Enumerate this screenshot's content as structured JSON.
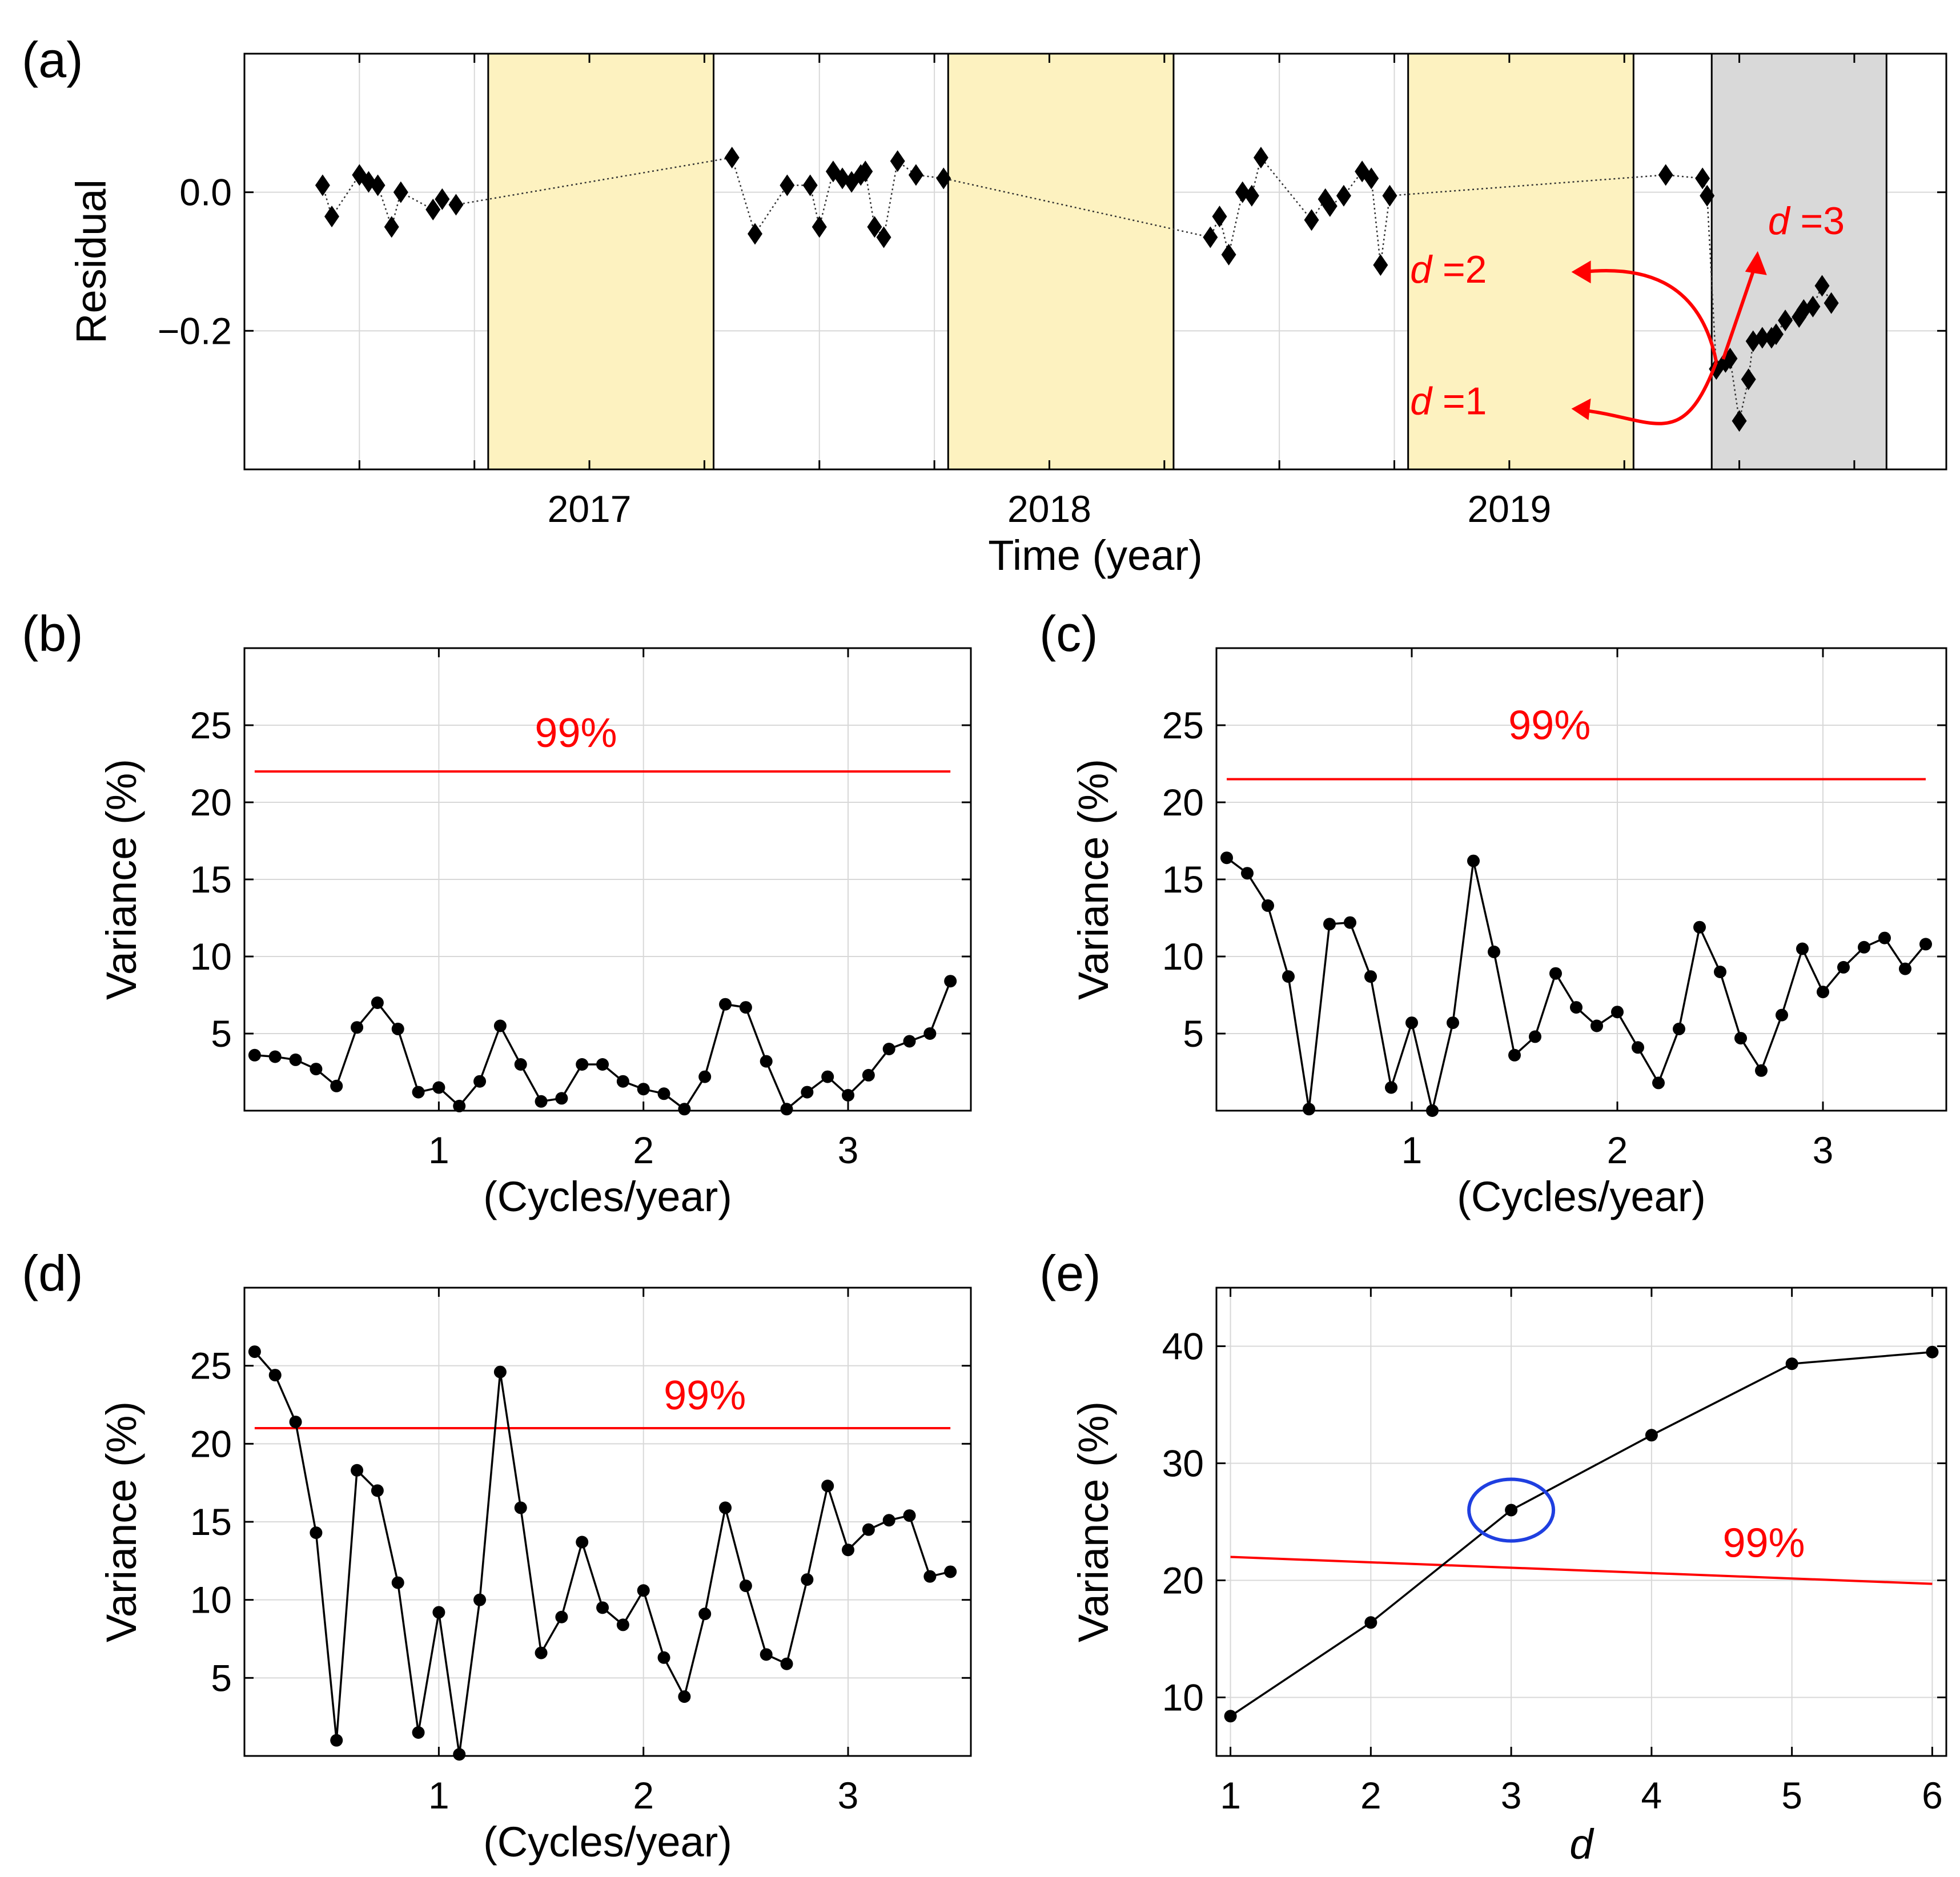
{
  "chart_data": [
    {
      "id": "a",
      "type": "scatter",
      "panel_label": "(a)",
      "xlabel": "Time (year)",
      "ylabel": "Residual",
      "xlim": [
        2016.25,
        2019.95
      ],
      "ylim": [
        -0.4,
        0.2
      ],
      "xticks": [
        2016.5,
        2016.75,
        2017,
        2017.25,
        2017.5,
        2017.75,
        2018,
        2018.25,
        2018.5,
        2018.75,
        2019,
        2019.25,
        2019.5,
        2019.75
      ],
      "xtick_labels": [
        {
          "x": 2017,
          "label": "2017"
        },
        {
          "x": 2018,
          "label": "2018"
        },
        {
          "x": 2019,
          "label": "2019"
        }
      ],
      "yticks": [
        0.0,
        -0.2
      ],
      "ytick_labels": [
        "0.0",
        "−0.2"
      ],
      "grid": true,
      "shaded_regions": [
        {
          "x0": 2016.78,
          "x1": 2017.27,
          "color": "#fdf2c0"
        },
        {
          "x0": 2017.78,
          "x1": 2018.27,
          "color": "#fdf2c0"
        },
        {
          "x0": 2018.78,
          "x1": 2019.27,
          "color": "#fdf2c0"
        },
        {
          "x0": 2019.44,
          "x1": 2019.82,
          "color": "#d9d9d9"
        }
      ],
      "series": [
        {
          "name": "residual",
          "marker": "diamond",
          "color": "#000000",
          "x": [
            2016.42,
            2016.44,
            2016.5,
            2016.52,
            2016.54,
            2016.57,
            2016.59,
            2016.66,
            2016.68,
            2016.71,
            2017.31,
            2017.36,
            2017.43,
            2017.48,
            2017.5,
            2017.53,
            2017.55,
            2017.57,
            2017.59,
            2017.6,
            2017.62,
            2017.64,
            2017.67,
            2017.71,
            2017.77,
            2018.35,
            2018.37,
            2018.39,
            2018.42,
            2018.44,
            2018.46,
            2018.57,
            2018.6,
            2018.61,
            2018.64,
            2018.68,
            2018.7,
            2018.72,
            2018.74,
            2019.34,
            2019.42,
            2019.43,
            2019.45,
            2019.47,
            2019.48,
            2019.5,
            2019.52,
            2019.53,
            2019.55,
            2019.57,
            2019.58,
            2019.6,
            2019.63,
            2019.64,
            2019.66,
            2019.68,
            2019.7
          ],
          "y": [
            0.01,
            -0.035,
            0.025,
            0.015,
            0.01,
            -0.05,
            0.0,
            -0.025,
            -0.01,
            -0.018,
            0.05,
            -0.06,
            0.01,
            0.01,
            -0.05,
            0.03,
            0.02,
            0.015,
            0.025,
            0.03,
            -0.05,
            -0.065,
            0.045,
            0.025,
            0.02,
            -0.065,
            -0.035,
            -0.09,
            0.0,
            -0.005,
            0.05,
            -0.04,
            -0.01,
            -0.02,
            -0.005,
            0.03,
            0.02,
            -0.105,
            -0.005,
            0.025,
            0.02,
            -0.005,
            -0.255,
            -0.245,
            -0.24,
            -0.33,
            -0.27,
            -0.215,
            -0.21,
            -0.21,
            -0.205,
            -0.185,
            -0.18,
            -0.17,
            -0.165,
            -0.135,
            -0.16
          ]
        }
      ],
      "annotations": [
        {
          "text": "d =1",
          "italic_part": "d",
          "color": "#ff0000",
          "x": 2019.05,
          "y": -0.3
        },
        {
          "text": "d =2",
          "italic_part": "d",
          "color": "#ff0000",
          "x": 2019.05,
          "y": -0.11
        },
        {
          "text": "d =3",
          "italic_part": "d",
          "color": "#ff0000",
          "x": 2019.65,
          "y": -0.04
        }
      ]
    },
    {
      "id": "b",
      "type": "line",
      "panel_label": "(b)",
      "xlabel": "(Cycles/year)",
      "ylabel": "Variance (%)",
      "xlim": [
        0.05,
        3.6
      ],
      "ylim": [
        0,
        30
      ],
      "xticks": [
        1,
        2,
        3
      ],
      "yticks": [
        5,
        10,
        15,
        20,
        25
      ],
      "grid": true,
      "threshold": {
        "label": "99%",
        "value": 22.0,
        "value_end": 22.0,
        "x0": 0.1,
        "x1": 3.5,
        "color": "#ff0000"
      },
      "series": [
        {
          "name": "variance",
          "x": [
            0.1,
            0.2,
            0.3,
            0.4,
            0.5,
            0.6,
            0.7,
            0.8,
            0.9,
            1.0,
            1.1,
            1.2,
            1.3,
            1.4,
            1.5,
            1.6,
            1.7,
            1.8,
            1.9,
            2.0,
            2.1,
            2.2,
            2.3,
            2.4,
            2.5,
            2.6,
            2.7,
            2.8,
            2.9,
            3.0,
            3.1,
            3.2,
            3.3,
            3.4,
            3.5
          ],
          "values": [
            3.6,
            3.5,
            3.3,
            2.7,
            1.6,
            5.4,
            7.0,
            5.3,
            1.2,
            1.5,
            0.3,
            1.9,
            5.5,
            3.0,
            0.6,
            0.8,
            3.0,
            3.0,
            1.9,
            1.4,
            1.1,
            0.1,
            2.2,
            6.9,
            6.7,
            3.2,
            0.1,
            1.2,
            2.2,
            1.0,
            2.3,
            4.0,
            4.5,
            5.0,
            8.4
          ]
        }
      ]
    },
    {
      "id": "c",
      "type": "line",
      "panel_label": "(c)",
      "xlabel": "(Cycles/year)",
      "ylabel": "Variance (%)",
      "xlim": [
        0.05,
        3.6
      ],
      "ylim": [
        0,
        30
      ],
      "xticks": [
        1,
        2,
        3
      ],
      "yticks": [
        5,
        10,
        15,
        20,
        25
      ],
      "grid": true,
      "threshold": {
        "label": "99%",
        "value": 21.5,
        "value_end": 21.5,
        "x0": 0.1,
        "x1": 3.5,
        "color": "#ff0000"
      },
      "series": [
        {
          "name": "variance",
          "x": [
            0.1,
            0.2,
            0.3,
            0.4,
            0.5,
            0.6,
            0.7,
            0.8,
            0.9,
            1.0,
            1.1,
            1.2,
            1.3,
            1.4,
            1.5,
            1.6,
            1.7,
            1.8,
            1.9,
            2.0,
            2.1,
            2.2,
            2.3,
            2.4,
            2.5,
            2.6,
            2.7,
            2.8,
            2.9,
            3.0,
            3.1,
            3.2,
            3.3,
            3.4,
            3.5
          ],
          "values": [
            16.4,
            15.4,
            13.3,
            8.7,
            0.1,
            12.1,
            12.2,
            8.7,
            1.5,
            5.7,
            0.0,
            5.7,
            16.2,
            10.3,
            3.6,
            4.8,
            8.9,
            6.7,
            5.5,
            6.4,
            4.1,
            1.8,
            5.3,
            11.9,
            9.0,
            4.7,
            2.6,
            6.2,
            10.5,
            7.7,
            9.3,
            10.6,
            11.2,
            9.2,
            10.8
          ]
        }
      ]
    },
    {
      "id": "d",
      "type": "line",
      "panel_label": "(d)",
      "xlabel": "(Cycles/year)",
      "ylabel": "Variance (%)",
      "xlim": [
        0.05,
        3.6
      ],
      "ylim": [
        0,
        30
      ],
      "xticks": [
        1,
        2,
        3
      ],
      "yticks": [
        5,
        10,
        15,
        20,
        25
      ],
      "grid": true,
      "threshold": {
        "label": "99%",
        "value": 21.0,
        "value_end": 21.0,
        "x0": 0.1,
        "x1": 3.5,
        "color": "#ff0000"
      },
      "series": [
        {
          "name": "variance",
          "x": [
            0.1,
            0.2,
            0.3,
            0.4,
            0.5,
            0.6,
            0.7,
            0.8,
            0.9,
            1.0,
            1.1,
            1.2,
            1.3,
            1.4,
            1.5,
            1.6,
            1.7,
            1.8,
            1.9,
            2.0,
            2.1,
            2.2,
            2.3,
            2.4,
            2.5,
            2.6,
            2.7,
            2.8,
            2.9,
            3.0,
            3.1,
            3.2,
            3.3,
            3.4,
            3.5
          ],
          "values": [
            25.9,
            24.4,
            21.4,
            14.3,
            1.0,
            18.3,
            17.0,
            11.1,
            1.5,
            9.2,
            0.1,
            10.0,
            24.6,
            15.9,
            6.6,
            8.9,
            13.7,
            9.5,
            8.4,
            10.6,
            6.3,
            3.8,
            9.1,
            15.9,
            10.9,
            6.5,
            5.9,
            11.3,
            17.3,
            13.2,
            14.5,
            15.1,
            15.4,
            11.5,
            11.8
          ]
        }
      ]
    },
    {
      "id": "e",
      "type": "line",
      "panel_label": "(e)",
      "xlabel": "d",
      "ylabel": "Variance (%)",
      "xlim": [
        0.9,
        6.1
      ],
      "ylim": [
        5,
        45
      ],
      "xticks": [
        1,
        2,
        3,
        4,
        5,
        6
      ],
      "yticks": [
        10,
        20,
        30,
        40
      ],
      "grid": true,
      "threshold": {
        "label": "99%",
        "value": 22.0,
        "value_end": 19.7,
        "x0": 1,
        "x1": 6,
        "color": "#ff0000"
      },
      "highlight": {
        "x": 3,
        "y": 26.0,
        "shape": "ellipse",
        "color": "#1f3fe0"
      },
      "series": [
        {
          "name": "variance",
          "x": [
            1,
            2,
            3,
            4,
            5,
            6
          ],
          "values": [
            8.4,
            16.4,
            26.0,
            32.4,
            38.5,
            39.5
          ]
        }
      ]
    }
  ]
}
